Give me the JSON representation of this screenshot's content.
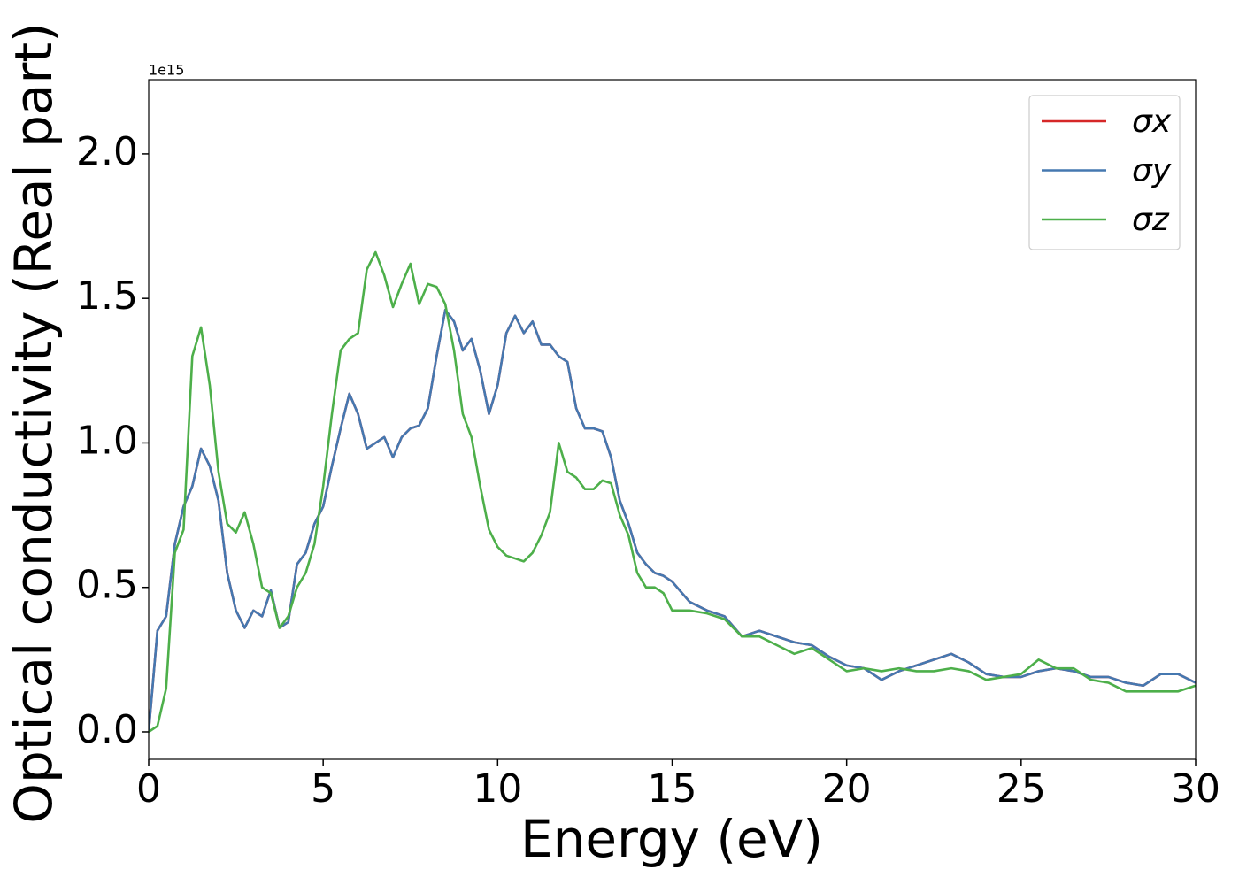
{
  "chart_data": {
    "type": "line",
    "x_label": "Energy (eV)",
    "y_label": "Optical conductivity (Real part)",
    "y_offset_label": "1e15",
    "x": [
      0,
      0.25,
      0.5,
      0.75,
      1,
      1.25,
      1.5,
      1.75,
      2,
      2.25,
      2.5,
      2.75,
      3,
      3.25,
      3.5,
      3.75,
      4,
      4.25,
      4.5,
      4.75,
      5,
      5.25,
      5.5,
      5.75,
      6,
      6.25,
      6.5,
      6.75,
      7,
      7.25,
      7.5,
      7.75,
      8,
      8.25,
      8.5,
      8.75,
      9,
      9.25,
      9.5,
      9.75,
      10,
      10.25,
      10.5,
      10.75,
      11,
      11.25,
      11.5,
      11.75,
      12,
      12.25,
      12.5,
      12.75,
      13,
      13.25,
      13.5,
      13.75,
      14,
      14.25,
      14.5,
      14.75,
      15,
      15.5,
      16,
      16.5,
      17,
      17.5,
      18,
      18.5,
      19,
      19.5,
      20,
      20.5,
      21,
      21.5,
      22,
      22.5,
      23,
      23.5,
      24,
      24.5,
      25,
      25.5,
      26,
      26.5,
      27,
      27.5,
      28,
      28.5,
      29,
      29.5,
      30
    ],
    "series": [
      {
        "name": "σx",
        "color": "#d62728",
        "values": [
          0,
          0.35,
          0.4,
          0.65,
          0.78,
          0.85,
          0.98,
          0.92,
          0.8,
          0.55,
          0.42,
          0.36,
          0.42,
          0.4,
          0.49,
          0.36,
          0.38,
          0.58,
          0.62,
          0.72,
          0.78,
          0.92,
          1.05,
          1.17,
          1.1,
          0.98,
          1.0,
          1.02,
          0.95,
          1.02,
          1.05,
          1.06,
          1.12,
          1.3,
          1.46,
          1.42,
          1.32,
          1.36,
          1.25,
          1.1,
          1.2,
          1.38,
          1.44,
          1.38,
          1.42,
          1.34,
          1.34,
          1.3,
          1.28,
          1.12,
          1.05,
          1.05,
          1.04,
          0.95,
          0.8,
          0.72,
          0.62,
          0.58,
          0.55,
          0.54,
          0.52,
          0.45,
          0.42,
          0.4,
          0.33,
          0.35,
          0.33,
          0.31,
          0.3,
          0.26,
          0.23,
          0.22,
          0.18,
          0.21,
          0.23,
          0.25,
          0.27,
          0.24,
          0.2,
          0.19,
          0.19,
          0.21,
          0.22,
          0.21,
          0.19,
          0.19,
          0.17,
          0.16,
          0.2,
          0.2,
          0.17
        ]
      },
      {
        "name": "σy",
        "color": "#4578b0",
        "values": [
          0,
          0.35,
          0.4,
          0.65,
          0.78,
          0.85,
          0.98,
          0.92,
          0.8,
          0.55,
          0.42,
          0.36,
          0.42,
          0.4,
          0.49,
          0.36,
          0.38,
          0.58,
          0.62,
          0.72,
          0.78,
          0.92,
          1.05,
          1.17,
          1.1,
          0.98,
          1.0,
          1.02,
          0.95,
          1.02,
          1.05,
          1.06,
          1.12,
          1.3,
          1.46,
          1.42,
          1.32,
          1.36,
          1.25,
          1.1,
          1.2,
          1.38,
          1.44,
          1.38,
          1.42,
          1.34,
          1.34,
          1.3,
          1.28,
          1.12,
          1.05,
          1.05,
          1.04,
          0.95,
          0.8,
          0.72,
          0.62,
          0.58,
          0.55,
          0.54,
          0.52,
          0.45,
          0.42,
          0.4,
          0.33,
          0.35,
          0.33,
          0.31,
          0.3,
          0.26,
          0.23,
          0.22,
          0.18,
          0.21,
          0.23,
          0.25,
          0.27,
          0.24,
          0.2,
          0.19,
          0.19,
          0.21,
          0.22,
          0.21,
          0.19,
          0.19,
          0.17,
          0.16,
          0.2,
          0.2,
          0.17
        ]
      },
      {
        "name": "σz",
        "color": "#4daf4a",
        "values": [
          0,
          0.02,
          0.15,
          0.62,
          0.7,
          1.3,
          1.4,
          1.2,
          0.9,
          0.72,
          0.69,
          0.76,
          0.65,
          0.5,
          0.48,
          0.36,
          0.4,
          0.5,
          0.55,
          0.65,
          0.85,
          1.1,
          1.32,
          1.36,
          1.38,
          1.6,
          1.66,
          1.58,
          1.47,
          1.55,
          1.62,
          1.48,
          1.55,
          1.54,
          1.48,
          1.32,
          1.1,
          1.02,
          0.85,
          0.7,
          0.64,
          0.61,
          0.6,
          0.59,
          0.62,
          0.68,
          0.76,
          1.0,
          0.9,
          0.88,
          0.84,
          0.84,
          0.87,
          0.86,
          0.75,
          0.68,
          0.55,
          0.5,
          0.5,
          0.48,
          0.42,
          0.42,
          0.41,
          0.39,
          0.33,
          0.33,
          0.3,
          0.27,
          0.29,
          0.25,
          0.21,
          0.22,
          0.21,
          0.22,
          0.21,
          0.21,
          0.22,
          0.21,
          0.18,
          0.19,
          0.2,
          0.25,
          0.22,
          0.22,
          0.18,
          0.17,
          0.14,
          0.14,
          0.14,
          0.14,
          0.16
        ]
      }
    ],
    "xlim": [
      0,
      30
    ],
    "xticks": [
      0,
      5,
      10,
      15,
      20,
      25,
      30
    ],
    "ylim": [
      -0.095,
      2.257
    ],
    "yticks": [
      {
        "value": 0,
        "label": "0.0"
      },
      0.5,
      {
        "value": 1,
        "label": "1.0"
      },
      1.5,
      {
        "value": 2,
        "label": "2.0"
      }
    ],
    "legend": "upper right",
    "grid": false
  }
}
